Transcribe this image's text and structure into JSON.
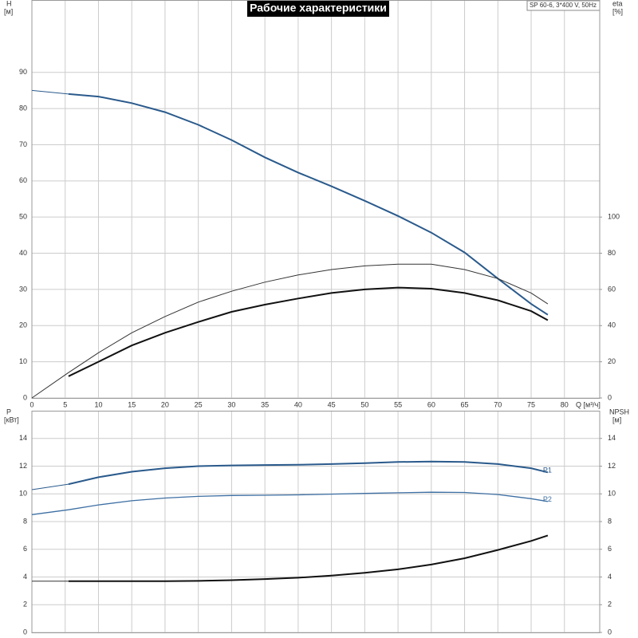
{
  "chart_data": [
    {
      "type": "line",
      "title": "Рабочие характеристики",
      "subtitle": "SP 60-6, 3*400 V, 50Hz",
      "y_label": "H",
      "y_unit": "[м]",
      "y2_label": "eta",
      "y2_unit": "[%]",
      "x_label": "Q [м³/ч]",
      "x": [
        0,
        5.5,
        10,
        15,
        20,
        25,
        30,
        35,
        40,
        45,
        50,
        55,
        60,
        65,
        70,
        75,
        77.5
      ],
      "xlim": [
        0,
        85.3
      ],
      "xticks": [
        0,
        5,
        10,
        15,
        20,
        25,
        30,
        35,
        40,
        45,
        50,
        55,
        60,
        65,
        70,
        75,
        80
      ],
      "ylim": [
        0,
        110
      ],
      "yticks": [
        0,
        10,
        20,
        30,
        40,
        50,
        60,
        70,
        80,
        90
      ],
      "y2lim": [
        0,
        220
      ],
      "y2ticks": [
        0,
        20,
        40,
        60,
        80,
        100
      ],
      "grid": true,
      "series": [
        {
          "color": "#2a5a8c",
          "linewidth": 1,
          "values": [
            85,
            84,
            null,
            null,
            null,
            null,
            null,
            null,
            null,
            null,
            null,
            null,
            null,
            null,
            null,
            null,
            null
          ]
        },
        {
          "color": "#2a5a8c",
          "linewidth": 2,
          "values": [
            null,
            84,
            83.3,
            81.5,
            79,
            75.5,
            71.3,
            66.5,
            62.3,
            58.5,
            54.5,
            50.3,
            45.7,
            40.2,
            33,
            26,
            23
          ]
        },
        {
          "color": "#333333",
          "linewidth": 1,
          "axis": "y2",
          "values": [
            0,
            14,
            25,
            36,
            45,
            53,
            59,
            64,
            68,
            71,
            73,
            74,
            74,
            71,
            66,
            58,
            52
          ]
        },
        {
          "color": "#111111",
          "linewidth": 2,
          "axis": "y2",
          "values": [
            null,
            12,
            20,
            29,
            36,
            42,
            47.6,
            51.6,
            55,
            58,
            60,
            61,
            60.4,
            58,
            54,
            48,
            43
          ]
        }
      ]
    },
    {
      "type": "line",
      "y_label": "P",
      "y_unit": "[кВт]",
      "y2_label": "NPSH",
      "y2_unit": "[м]",
      "x": [
        0,
        5.5,
        10,
        15,
        20,
        25,
        30,
        35,
        40,
        45,
        50,
        55,
        60,
        65,
        70,
        75,
        77.5
      ],
      "xlim": [
        0,
        85.3
      ],
      "ylim": [
        0,
        16
      ],
      "yticks": [
        0,
        2,
        4,
        6,
        8,
        10,
        12,
        14
      ],
      "y2lim": [
        0,
        16
      ],
      "y2ticks": [
        0,
        2,
        4,
        6,
        8,
        10,
        12,
        14
      ],
      "grid": true,
      "series": [
        {
          "color": "#2a5a8c",
          "linewidth": 1,
          "values": [
            10.3,
            10.7,
            null,
            null,
            null,
            null,
            null,
            null,
            null,
            null,
            null,
            null,
            null,
            null,
            null,
            null,
            null
          ]
        },
        {
          "name": "P1",
          "color": "#2a5a8c",
          "linewidth": 2,
          "values": [
            null,
            10.7,
            11.2,
            11.6,
            11.85,
            12,
            12.05,
            12.08,
            12.1,
            12.15,
            12.22,
            12.3,
            12.33,
            12.3,
            12.15,
            11.85,
            11.55
          ]
        },
        {
          "name": "P2",
          "color": "#3d6fa3",
          "linewidth": 1.3,
          "values": [
            8.5,
            8.85,
            9.2,
            9.5,
            9.7,
            9.82,
            9.88,
            9.9,
            9.93,
            9.98,
            10.03,
            10.08,
            10.12,
            10.1,
            9.95,
            9.65,
            9.45
          ]
        },
        {
          "color": "#333333",
          "linewidth": 1,
          "axis": "y2",
          "values": [
            3.7,
            3.7,
            null,
            null,
            null,
            null,
            null,
            null,
            null,
            null,
            null,
            null,
            null,
            null,
            null,
            null,
            null
          ]
        },
        {
          "color": "#111111",
          "linewidth": 2,
          "axis": "y2",
          "values": [
            null,
            3.7,
            3.7,
            3.7,
            3.7,
            3.72,
            3.77,
            3.85,
            3.95,
            4.1,
            4.3,
            4.55,
            4.9,
            5.35,
            5.95,
            6.6,
            7.0
          ]
        }
      ]
    }
  ]
}
